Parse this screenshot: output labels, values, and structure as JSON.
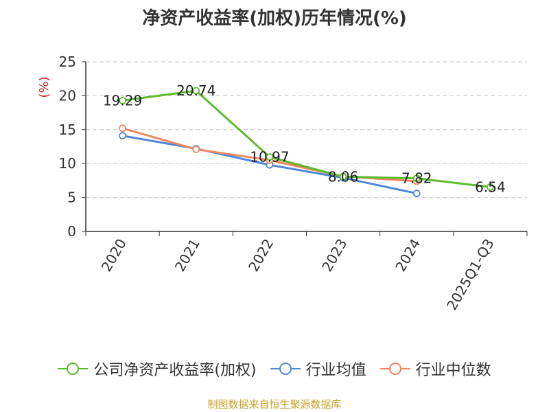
{
  "chart_data": {
    "type": "line",
    "title": "净资产收益率(加权)历年情况(%)",
    "ylabel": "(%)",
    "xlabel": "",
    "categories": [
      "2020",
      "2021",
      "2022",
      "2023",
      "2024",
      "2025Q1-Q3"
    ],
    "ylim": [
      0,
      25
    ],
    "yticks": [
      0,
      5,
      10,
      15,
      20,
      25
    ],
    "grid": true,
    "legend_position": "bottom",
    "series": [
      {
        "name": "公司净资产收益率(加权)",
        "color": "#5dbb2d",
        "values": [
          19.29,
          20.74,
          10.97,
          8.06,
          7.82,
          6.54
        ],
        "labels": [
          "19.29",
          "20.74",
          "10.97",
          "8.06",
          "7.82",
          "6.54"
        ]
      },
      {
        "name": "行业均值",
        "color": "#4f86d9",
        "values": [
          14.1,
          12.2,
          9.8,
          7.9,
          5.6,
          null
        ]
      },
      {
        "name": "行业中位数",
        "color": "#f0875f",
        "values": [
          15.2,
          12.1,
          10.5,
          8.1,
          7.4,
          null
        ]
      }
    ]
  },
  "source": "制图数据来自恒生聚源数据库"
}
